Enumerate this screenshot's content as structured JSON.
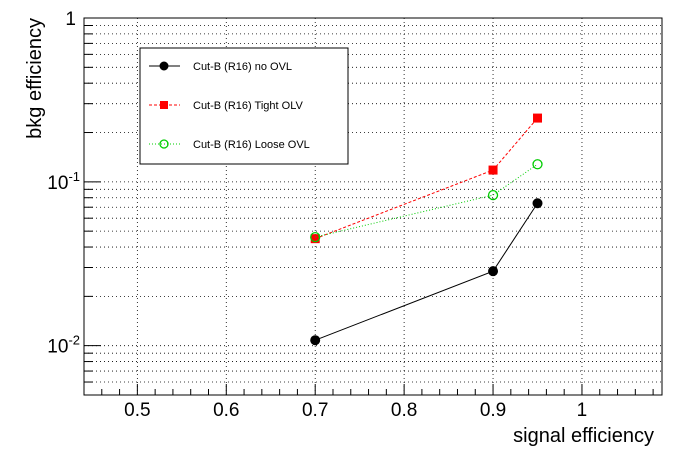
{
  "chart_data": {
    "type": "line",
    "title": "",
    "xlabel": "signal efficiency",
    "ylabel": "bkg efficiency",
    "xlim": [
      0.44,
      1.09
    ],
    "ylim": [
      0.005,
      1
    ],
    "yscale": "log",
    "grid": true,
    "legend_position": "top-left",
    "x_ticks": [
      0.5,
      0.6,
      0.7,
      0.8,
      0.9,
      1.0
    ],
    "x_tick_labels": [
      "0.5",
      "0.6",
      "0.7",
      "0.8",
      "0.9",
      "1"
    ],
    "y_ticks": [
      {
        "value": 1,
        "base": "1",
        "exp": ""
      },
      {
        "value": 0.1,
        "base": "10",
        "exp": "-1"
      },
      {
        "value": 0.01,
        "base": "10",
        "exp": "-2"
      }
    ],
    "series": [
      {
        "name": "Cut-B (R16) no OVL",
        "color": "#000000",
        "marker": "filled-circle",
        "line": "solid",
        "x": [
          0.7,
          0.9,
          0.95
        ],
        "y": [
          0.0108,
          0.0285,
          0.074
        ]
      },
      {
        "name": "Cut-B (R16) Tight OLV",
        "color": "#ff0000",
        "marker": "filled-square",
        "line": "dashed",
        "x": [
          0.7,
          0.9,
          0.95
        ],
        "y": [
          0.045,
          0.118,
          0.245
        ]
      },
      {
        "name": "Cut-B (R16) Loose OVL",
        "color": "#00cc00",
        "marker": "open-circle",
        "line": "dotted",
        "x": [
          0.7,
          0.9,
          0.95
        ],
        "y": [
          0.046,
          0.083,
          0.128
        ]
      }
    ]
  }
}
